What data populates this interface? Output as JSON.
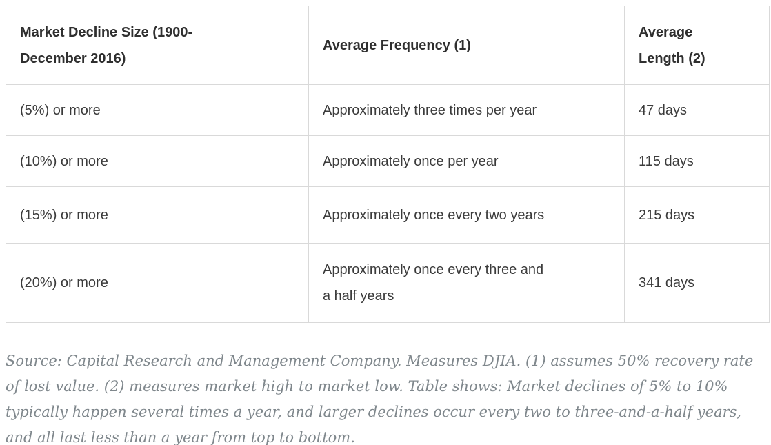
{
  "table": {
    "headers": [
      "Market Decline Size (1900-\nDecember 2016)",
      "Average Frequency (1)",
      "Average\nLength (2)"
    ],
    "rows": [
      {
        "decline": "(5%) or more",
        "frequency": "Approximately three times per year",
        "length": "47 days"
      },
      {
        "decline": "(10%) or more",
        "frequency": "Approximately once per year",
        "length": "115 days"
      },
      {
        "decline": "(15%) or more",
        "frequency": "Approximately once every two years",
        "length": "215 days"
      },
      {
        "decline": "(20%) or more",
        "frequency": "Approximately once every three and\na half years",
        "length": "341 days"
      }
    ]
  },
  "footnote": {
    "text": "Source: Capital Research and Management Company. Measures DJIA. (1) assumes 50% recovery rate of lost value. (2) measures market high to market low. Table shows: Market declines of 5% to 10% typically happen several times a year, and larger declines occur every two to three-and-a-half years, and all last less than a year from top to bottom."
  },
  "colors": {
    "border": "#d9d9d9",
    "header_text": "#2f2f2f",
    "body_text": "#3b3b3b",
    "footnote_text": "#7f878c"
  }
}
